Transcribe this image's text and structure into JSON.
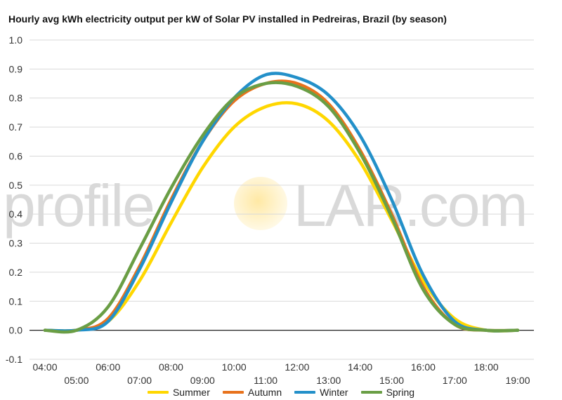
{
  "chart_data": {
    "type": "line",
    "title": "Hourly avg kWh electricity output per kW of Solar PV installed in Pedreiras, Brazil (by season)",
    "xlabel": "",
    "ylabel": "",
    "ylim": [
      -0.1,
      1.0
    ],
    "yticks": [
      "-0.1",
      "0.0",
      "0.1",
      "0.2",
      "0.3",
      "0.4",
      "0.5",
      "0.6",
      "0.7",
      "0.8",
      "0.9",
      "1.0"
    ],
    "xlim": [
      "04:00",
      "19:00"
    ],
    "x": [
      "04:00",
      "05:00",
      "06:00",
      "07:00",
      "08:00",
      "09:00",
      "10:00",
      "11:00",
      "12:00",
      "13:00",
      "14:00",
      "15:00",
      "16:00",
      "17:00",
      "18:00",
      "19:00"
    ],
    "grid": true,
    "legend_position": "bottom",
    "series": [
      {
        "name": "Summer",
        "color": "#FFD700",
        "values": [
          0.0,
          0.0,
          0.03,
          0.17,
          0.37,
          0.56,
          0.7,
          0.77,
          0.78,
          0.72,
          0.58,
          0.38,
          0.17,
          0.04,
          0.0,
          0.0
        ]
      },
      {
        "name": "Autumn",
        "color": "#E8721C",
        "values": [
          0.0,
          0.0,
          0.04,
          0.22,
          0.45,
          0.65,
          0.79,
          0.85,
          0.85,
          0.78,
          0.62,
          0.4,
          0.15,
          0.02,
          0.0,
          0.0
        ]
      },
      {
        "name": "Winter",
        "color": "#2390C9",
        "values": [
          0.0,
          0.0,
          0.03,
          0.21,
          0.44,
          0.65,
          0.8,
          0.88,
          0.87,
          0.81,
          0.67,
          0.45,
          0.19,
          0.03,
          0.0,
          0.0
        ]
      },
      {
        "name": "Spring",
        "color": "#6A9E45",
        "values": [
          0.0,
          0.0,
          0.08,
          0.28,
          0.49,
          0.67,
          0.8,
          0.85,
          0.84,
          0.77,
          0.61,
          0.39,
          0.14,
          0.02,
          0.0,
          0.0
        ]
      }
    ]
  },
  "watermark": {
    "left": "profile",
    "right": "LAR.com"
  }
}
